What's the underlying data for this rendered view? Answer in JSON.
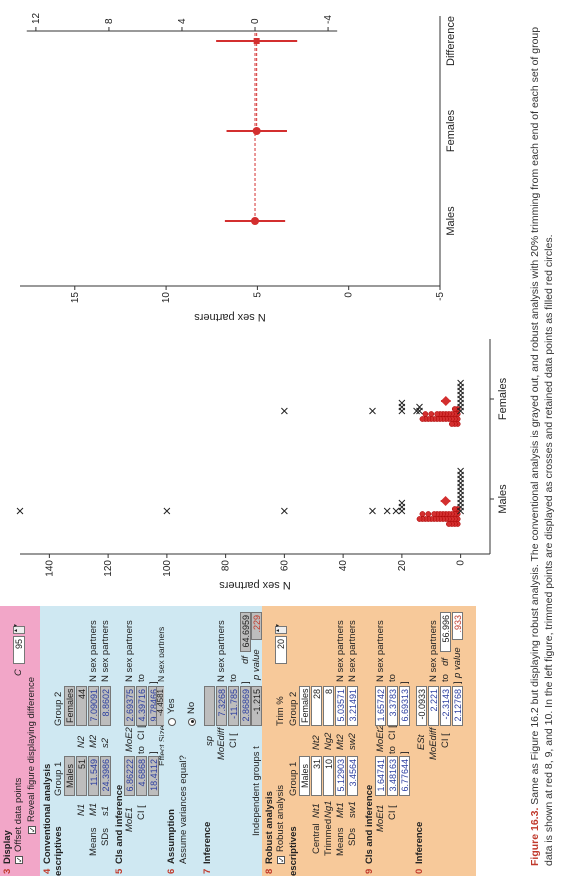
{
  "panel": {
    "display": {
      "num": "3",
      "title": "Display",
      "offset_label": "Offset data points",
      "c_label": "C",
      "c_value": "95",
      "reveal_label": "Reveal figure displaying difference"
    },
    "conventional": {
      "num": "4",
      "title": "Conventional analysis",
      "descriptives": "escriptives",
      "group1": "Group 1",
      "group2": "Group 2",
      "males": "Males",
      "females": "Females",
      "n1_label": "N1",
      "n1": "51",
      "n2_label": "N2",
      "n2": "44",
      "means_label": "Means",
      "m1_label": "M1",
      "m1": "11.549",
      "m2_label": "M2",
      "m2": "7.09091",
      "unit": "N sex partners",
      "sds_label": "SDs",
      "s1_label": "s1",
      "s1": "24.3986",
      "s2_label": "s2",
      "s2": "8.8602"
    },
    "cis": {
      "num": "5",
      "title": "CIs and inference",
      "moe1_label": "MoE1",
      "moe1": "6.86222",
      "moe2_label": "MoE2",
      "moe2": "2.69375",
      "ci_label": "CI [",
      "ci1_lo": "4.6868",
      "ci1_hi": "18.4112",
      "ci2_lo": "4.39716",
      "ci2_hi": "9.78466",
      "to": "to",
      "close": "]",
      "unit": "N sex partners",
      "es_label": "Effect Size",
      "es": "-4.4581"
    },
    "assumption": {
      "num": "6",
      "title": "Assumption",
      "question": "Assume variances equal?",
      "yes": "Yes",
      "no": "No"
    },
    "inference": {
      "num": "7",
      "title": "Inference",
      "sp_label": "sp",
      "moe_label": "MoEdiff",
      "moe": "7.3268",
      "unit": "N sex partners",
      "ci_label": "CI [",
      "ci_lo": "-11.785",
      "to": "to",
      "ci_hi": "2.86869",
      "close": "]",
      "df_label": "df",
      "df": "64.6959",
      "t_label": "Independent groups t",
      "t": "-1.215",
      "p_label": "p value",
      "p": ".229"
    },
    "robust": {
      "num": "8",
      "title": "Robust analysis",
      "robust_label": "Robust analysis",
      "trim_label": "Trim %",
      "trim": "20",
      "descriptives": "escriptives",
      "group1": "Group 1",
      "group2": "Group 2",
      "males": "Males",
      "females": "Females",
      "central_label": "Central",
      "nt1_label": "Nt1",
      "nt1": "31",
      "nt2_label": "Nt2",
      "nt2": "28",
      "trimmed_label": "Trimmed",
      "ng1_label": "Ng1",
      "ng1": "10",
      "ng2_label": "Ng2",
      "ng2": "8",
      "means_label": "Means",
      "mt1_label": "Mt1",
      "mt1": "5.12903",
      "mt2_label": "Mt2",
      "mt2": "5.03571",
      "unit": "N sex partners",
      "sds_label": "SDs",
      "sw1_label": "sw1",
      "sw1": "3.4564",
      "sw2_label": "sw2",
      "sw2": "3.21491"
    },
    "robust_cis": {
      "num": "9",
      "title": "CIs and inference",
      "moe1_label": "MoEt1",
      "moe1": "1.64741",
      "moe2_label": "MoEt2",
      "moe2": "1.65742",
      "unit": "N sex partners",
      "ci_label": "CI [",
      "ci1_lo": "3.48163",
      "ci1_hi": "6.77644",
      "ci2_lo": "3.3783",
      "ci2_hi": "6.69313",
      "to": "to",
      "close": "]"
    },
    "robust_inference": {
      "num": "0",
      "title": "Inference",
      "es_label": "ESt",
      "es": "-0.0933",
      "moe_label": "MoEdiff",
      "moe": "2.221",
      "unit": "N sex partners",
      "ci_label": "CI [",
      "ci_lo": "-2.3143",
      "to": "to",
      "ci_hi": "2.12768",
      "close": "]",
      "df_label": "df",
      "df": "56.996",
      "p_label": "p value",
      "p": ".933"
    }
  },
  "caption": {
    "label": "Figure 16.3.",
    "text": "Same as Figure 16.2 but displaying robust analysis. The conventional analysis is grayed out, and robust analysis with 20% trimming from each end of each set of group data is shown at red 8, 9, and 10. In the left figure, trimmed points are displayed as crosses and retained data points as filled red circles."
  },
  "colors": {
    "display": "#f2a6c8",
    "conventional": "#cfe8f2",
    "robust": "#f7c99a",
    "red": "#d32f2f"
  },
  "chart_data": [
    {
      "type": "scatter",
      "ylabel": "N sex partners",
      "ylim": [
        -10,
        150
      ],
      "yticks": [
        0,
        20,
        40,
        60,
        80,
        100,
        120,
        140
      ],
      "categories": [
        "Males",
        "Females"
      ],
      "series": [
        {
          "name": "Males",
          "trimmed": [
            150,
            100,
            60,
            30,
            25,
            22,
            20,
            20,
            20,
            0,
            0,
            0,
            0,
            0,
            0,
            0,
            0,
            0,
            0,
            0
          ],
          "retained_count": 31,
          "retained_range": [
            1,
            14
          ],
          "mean": 5.13,
          "ci": [
            3.48,
            6.78
          ]
        },
        {
          "name": "Females",
          "trimmed": [
            60,
            30,
            20,
            20,
            20,
            15,
            14,
            14,
            0,
            0,
            0,
            0,
            0,
            0,
            0,
            0
          ],
          "retained_count": 28,
          "retained_range": [
            1,
            13
          ],
          "mean": 5.04,
          "ci": [
            3.38,
            6.69
          ]
        }
      ],
      "grid": false
    },
    {
      "type": "scatter",
      "ylabel": "N sex partners",
      "ylim": [
        -5,
        18
      ],
      "yticks": [
        -5,
        0,
        5,
        10,
        15
      ],
      "yticks_right": [
        -4,
        0,
        4,
        8,
        12
      ],
      "categories": [
        "Males",
        "Females",
        "Difference"
      ],
      "series": [
        {
          "name": "Males",
          "mean": 5.13,
          "ci": [
            3.48,
            6.78
          ]
        },
        {
          "name": "Females",
          "mean": 5.04,
          "ci": [
            3.38,
            6.69
          ]
        },
        {
          "name": "Difference",
          "mean": -0.09,
          "ci": [
            -2.31,
            2.13
          ]
        }
      ],
      "grid": false
    }
  ]
}
